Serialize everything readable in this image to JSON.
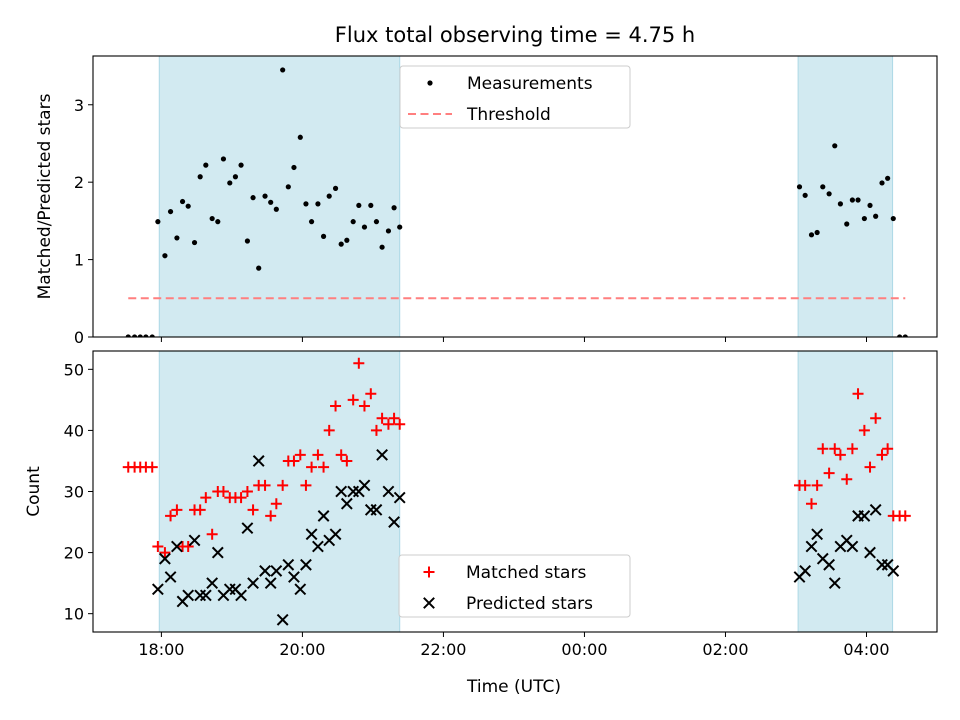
{
  "chart_data": {
    "type": "scatter",
    "title": "Flux total observing time = 4.75 h",
    "xlabel": "Time (UTC)",
    "x_ticks": [
      "18:00",
      "20:00",
      "22:00",
      "00:00",
      "02:00",
      "04:00"
    ],
    "x_range_hours": [
      17.03,
      29.0
    ],
    "shaded_intervals_hours": [
      [
        17.97,
        21.38
      ],
      [
        27.03,
        28.37
      ]
    ],
    "shade_color": "#add8e6",
    "panels": [
      {
        "ylabel": "Matched/Predicted stars",
        "ylim": [
          0,
          3.63
        ],
        "yticks": [
          0,
          1,
          2,
          3
        ],
        "legend_position": "top-center",
        "series": [
          {
            "name": "Measurements",
            "marker": "dot",
            "color": "#000000",
            "points": [
              [
                17.53,
                0
              ],
              [
                17.62,
                0
              ],
              [
                17.7,
                0
              ],
              [
                17.78,
                0
              ],
              [
                17.87,
                0
              ],
              [
                17.95,
                1.49
              ],
              [
                18.05,
                1.05
              ],
              [
                18.13,
                1.62
              ],
              [
                18.22,
                1.28
              ],
              [
                18.3,
                1.75
              ],
              [
                18.38,
                1.69
              ],
              [
                18.47,
                1.22
              ],
              [
                18.55,
                2.07
              ],
              [
                18.63,
                2.22
              ],
              [
                18.72,
                1.53
              ],
              [
                18.8,
                1.49
              ],
              [
                18.88,
                2.3
              ],
              [
                18.97,
                1.99
              ],
              [
                19.05,
                2.07
              ],
              [
                19.13,
                2.22
              ],
              [
                19.22,
                1.24
              ],
              [
                19.3,
                1.8
              ],
              [
                19.38,
                0.89
              ],
              [
                19.47,
                1.82
              ],
              [
                19.55,
                1.74
              ],
              [
                19.63,
                1.65
              ],
              [
                19.72,
                3.45
              ],
              [
                19.8,
                1.94
              ],
              [
                19.88,
                2.19
              ],
              [
                19.97,
                2.58
              ],
              [
                20.05,
                1.72
              ],
              [
                20.13,
                1.49
              ],
              [
                20.22,
                1.72
              ],
              [
                20.3,
                1.3
              ],
              [
                20.38,
                1.82
              ],
              [
                20.47,
                1.92
              ],
              [
                20.55,
                1.2
              ],
              [
                20.63,
                1.25
              ],
              [
                20.72,
                1.49
              ],
              [
                20.8,
                1.7
              ],
              [
                20.88,
                1.42
              ],
              [
                20.97,
                1.7
              ],
              [
                21.05,
                1.49
              ],
              [
                21.13,
                1.16
              ],
              [
                21.22,
                1.37
              ],
              [
                21.3,
                1.67
              ],
              [
                21.38,
                1.42
              ],
              [
                27.05,
                1.94
              ],
              [
                27.13,
                1.83
              ],
              [
                27.22,
                1.32
              ],
              [
                27.3,
                1.35
              ],
              [
                27.38,
                1.94
              ],
              [
                27.47,
                1.85
              ],
              [
                27.55,
                2.47
              ],
              [
                27.63,
                1.72
              ],
              [
                27.72,
                1.46
              ],
              [
                27.8,
                1.77
              ],
              [
                27.88,
                1.77
              ],
              [
                27.97,
                1.53
              ],
              [
                28.05,
                1.7
              ],
              [
                28.13,
                1.56
              ],
              [
                28.22,
                1.99
              ],
              [
                28.3,
                2.05
              ],
              [
                28.38,
                1.53
              ],
              [
                28.47,
                0
              ],
              [
                28.55,
                0
              ]
            ]
          },
          {
            "name": "Threshold",
            "marker": "dashed-line",
            "color": "#ff7f7f",
            "points": [
              [
                17.53,
                0.5
              ],
              [
                28.55,
                0.5
              ]
            ]
          }
        ]
      },
      {
        "ylabel": "Count",
        "ylim": [
          7,
          53
        ],
        "yticks": [
          10,
          20,
          30,
          40,
          50
        ],
        "legend_position": "bottom-center",
        "series": [
          {
            "name": "Matched stars",
            "marker": "plus",
            "color": "#ff0000",
            "points": [
              [
                17.53,
                34
              ],
              [
                17.62,
                34
              ],
              [
                17.7,
                34
              ],
              [
                17.78,
                34
              ],
              [
                17.87,
                34
              ],
              [
                17.95,
                21
              ],
              [
                18.05,
                20
              ],
              [
                18.13,
                26
              ],
              [
                18.22,
                27
              ],
              [
                18.3,
                21
              ],
              [
                18.38,
                21
              ],
              [
                18.47,
                27
              ],
              [
                18.55,
                27
              ],
              [
                18.63,
                29
              ],
              [
                18.72,
                23
              ],
              [
                18.8,
                30
              ],
              [
                18.88,
                30
              ],
              [
                18.97,
                29
              ],
              [
                19.05,
                29
              ],
              [
                19.13,
                29
              ],
              [
                19.22,
                30
              ],
              [
                19.3,
                27
              ],
              [
                19.38,
                31
              ],
              [
                19.47,
                31
              ],
              [
                19.55,
                26
              ],
              [
                19.63,
                28
              ],
              [
                19.72,
                31
              ],
              [
                19.8,
                35
              ],
              [
                19.88,
                35
              ],
              [
                19.97,
                36
              ],
              [
                20.05,
                31
              ],
              [
                20.13,
                34
              ],
              [
                20.22,
                36
              ],
              [
                20.3,
                34
              ],
              [
                20.38,
                40
              ],
              [
                20.47,
                44
              ],
              [
                20.55,
                36
              ],
              [
                20.63,
                35
              ],
              [
                20.72,
                45
              ],
              [
                20.8,
                51
              ],
              [
                20.88,
                44
              ],
              [
                20.97,
                46
              ],
              [
                21.05,
                40
              ],
              [
                21.13,
                42
              ],
              [
                21.22,
                41
              ],
              [
                21.3,
                42
              ],
              [
                21.38,
                41
              ],
              [
                27.05,
                31
              ],
              [
                27.13,
                31
              ],
              [
                27.22,
                28
              ],
              [
                27.3,
                31
              ],
              [
                27.38,
                37
              ],
              [
                27.47,
                33
              ],
              [
                27.55,
                37
              ],
              [
                27.63,
                36
              ],
              [
                27.72,
                32
              ],
              [
                27.8,
                37
              ],
              [
                27.88,
                46
              ],
              [
                27.97,
                40
              ],
              [
                28.05,
                34
              ],
              [
                28.13,
                42
              ],
              [
                28.22,
                36
              ],
              [
                28.3,
                37
              ],
              [
                28.38,
                26
              ],
              [
                28.47,
                26
              ],
              [
                28.55,
                26
              ]
            ]
          },
          {
            "name": "Predicted stars",
            "marker": "x",
            "color": "#000000",
            "points": [
              [
                17.95,
                14
              ],
              [
                18.05,
                19
              ],
              [
                18.13,
                16
              ],
              [
                18.22,
                21
              ],
              [
                18.3,
                12
              ],
              [
                18.38,
                13
              ],
              [
                18.47,
                22
              ],
              [
                18.55,
                13
              ],
              [
                18.63,
                13
              ],
              [
                18.72,
                15
              ],
              [
                18.8,
                20
              ],
              [
                18.88,
                13
              ],
              [
                18.97,
                14
              ],
              [
                19.05,
                14
              ],
              [
                19.13,
                13
              ],
              [
                19.22,
                24
              ],
              [
                19.3,
                15
              ],
              [
                19.38,
                35
              ],
              [
                19.47,
                17
              ],
              [
                19.55,
                15
              ],
              [
                19.63,
                17
              ],
              [
                19.72,
                9
              ],
              [
                19.8,
                18
              ],
              [
                19.88,
                16
              ],
              [
                19.97,
                14
              ],
              [
                20.05,
                18
              ],
              [
                20.13,
                23
              ],
              [
                20.22,
                21
              ],
              [
                20.3,
                26
              ],
              [
                20.38,
                22
              ],
              [
                20.47,
                23
              ],
              [
                20.55,
                30
              ],
              [
                20.63,
                28
              ],
              [
                20.72,
                30
              ],
              [
                20.8,
                30
              ],
              [
                20.88,
                31
              ],
              [
                20.97,
                27
              ],
              [
                21.05,
                27
              ],
              [
                21.13,
                36
              ],
              [
                21.22,
                30
              ],
              [
                21.3,
                25
              ],
              [
                21.38,
                29
              ],
              [
                27.05,
                16
              ],
              [
                27.13,
                17
              ],
              [
                27.22,
                21
              ],
              [
                27.3,
                23
              ],
              [
                27.38,
                19
              ],
              [
                27.47,
                18
              ],
              [
                27.55,
                15
              ],
              [
                27.63,
                21
              ],
              [
                27.72,
                22
              ],
              [
                27.8,
                21
              ],
              [
                27.88,
                26
              ],
              [
                27.97,
                26
              ],
              [
                28.05,
                20
              ],
              [
                28.13,
                27
              ],
              [
                28.22,
                18
              ],
              [
                28.3,
                18
              ],
              [
                28.38,
                17
              ]
            ]
          }
        ]
      }
    ]
  }
}
